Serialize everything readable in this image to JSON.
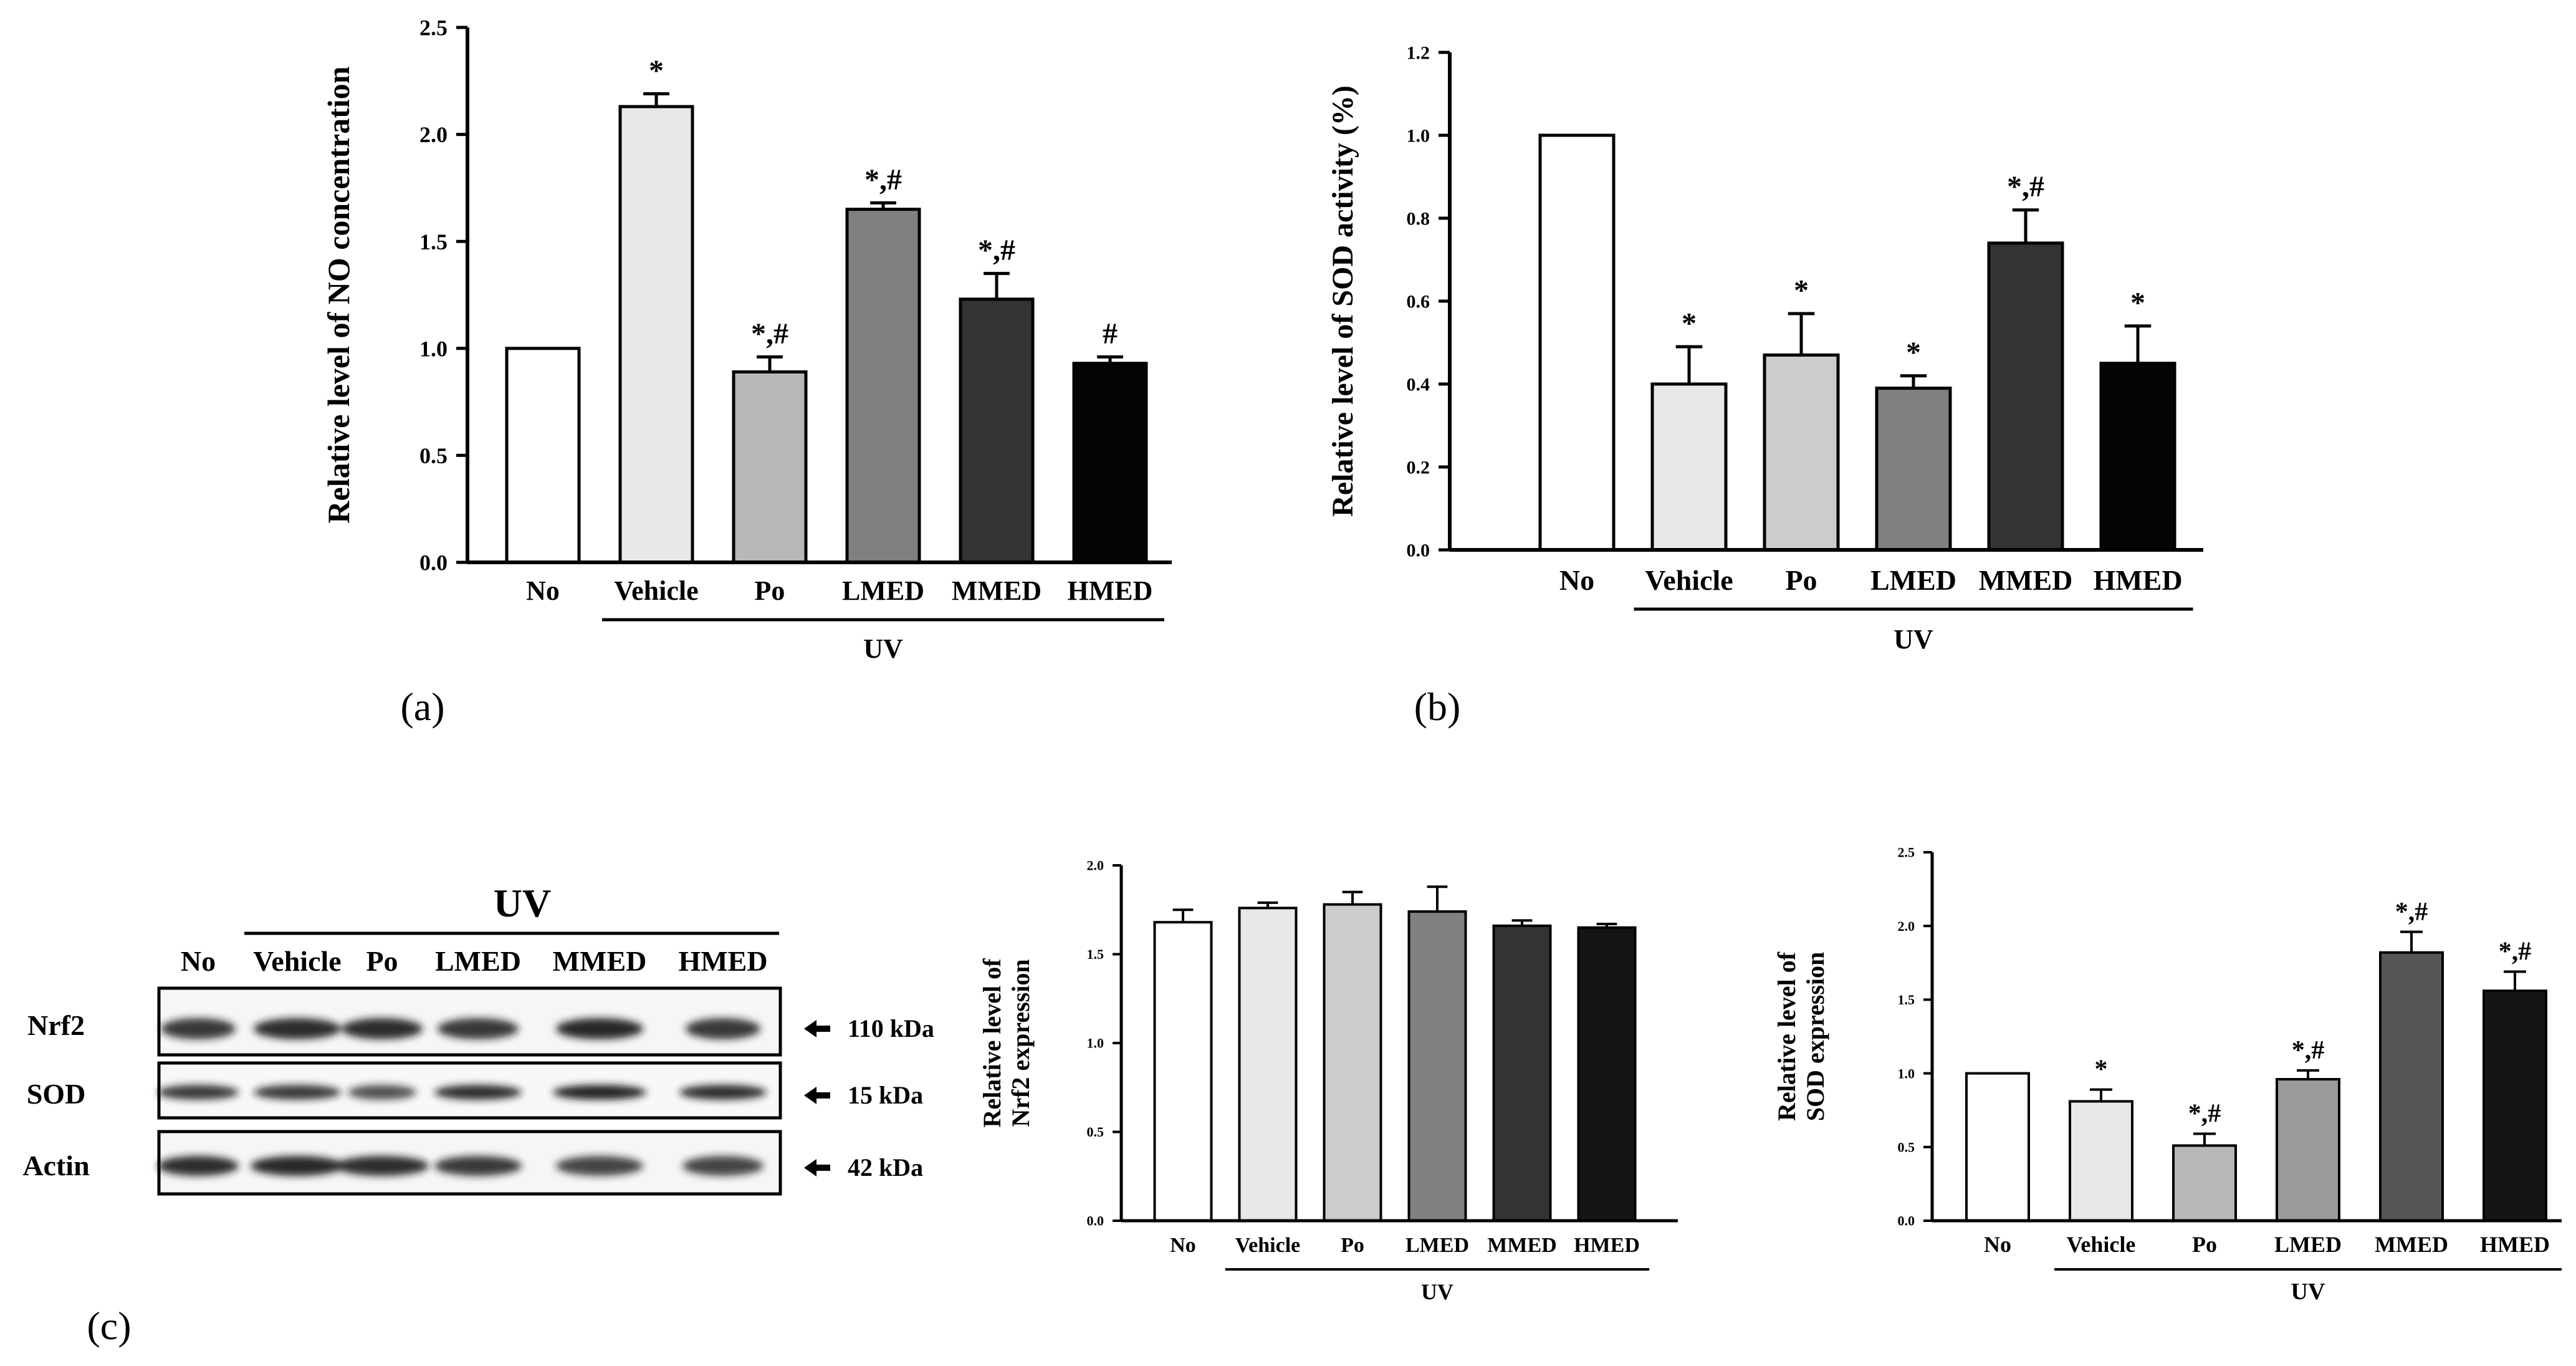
{
  "panel_labels": {
    "a": "(a)",
    "b": "(b)",
    "c": "(c)"
  },
  "chart_data": [
    {
      "id": "a",
      "type": "bar",
      "ylabel": "Relative level of NO concentration",
      "ylim": [
        0,
        2.5
      ],
      "yticks": [
        0.0,
        0.5,
        1.0,
        1.5,
        2.0,
        2.5
      ],
      "tick_decimals": 1,
      "categories": [
        "No",
        "Vehicle",
        "Po",
        "LMED",
        "MMED",
        "HMED"
      ],
      "values": [
        1.0,
        2.13,
        0.89,
        1.65,
        1.23,
        0.93
      ],
      "errors": [
        0.0,
        0.06,
        0.07,
        0.03,
        0.12,
        0.03
      ],
      "annotations": [
        "",
        "*",
        "*,#",
        "*,#",
        "*,#",
        "#"
      ],
      "colors": [
        "#ffffff",
        "#e8e8e8",
        "#b8b8b8",
        "#808080",
        "#333333",
        "#050505"
      ],
      "group_label": "UV",
      "group_start": 1,
      "group_end": 5
    },
    {
      "id": "b",
      "type": "bar",
      "ylabel": "Relative level of SOD activity (%)",
      "ylim": [
        0,
        1.2
      ],
      "yticks": [
        0.0,
        0.2,
        0.4,
        0.6,
        0.8,
        1.0,
        1.2
      ],
      "tick_decimals": 1,
      "categories": [
        "No",
        "Vehicle",
        "Po",
        "LMED",
        "MMED",
        "HMED"
      ],
      "values": [
        1.0,
        0.4,
        0.47,
        0.39,
        0.74,
        0.45
      ],
      "errors": [
        0.0,
        0.09,
        0.1,
        0.03,
        0.08,
        0.09
      ],
      "annotations": [
        "",
        "*",
        "*",
        "*",
        "*,#",
        "*"
      ],
      "colors": [
        "#ffffff",
        "#e8e8e8",
        "#cccccc",
        "#808080",
        "#333333",
        "#050505"
      ],
      "group_label": "UV",
      "group_start": 1,
      "group_end": 5
    },
    {
      "id": "c1",
      "type": "bar",
      "ylabel_lines": [
        "Relative level of",
        "Nrf2 expression"
      ],
      "ylim": [
        0,
        2.0
      ],
      "yticks": [
        0.0,
        0.5,
        1.0,
        1.5,
        2.0
      ],
      "tick_decimals": 1,
      "categories": [
        "No",
        "Vehicle",
        "Po",
        "LMED",
        "MMED",
        "HMED"
      ],
      "values": [
        1.68,
        1.76,
        1.78,
        1.74,
        1.66,
        1.65
      ],
      "errors": [
        0.07,
        0.03,
        0.07,
        0.14,
        0.03,
        0.02
      ],
      "annotations": [
        "",
        "",
        "",
        "",
        "",
        ""
      ],
      "colors": [
        "#ffffff",
        "#e8e8e8",
        "#cccccc",
        "#808080",
        "#333333",
        "#151515"
      ],
      "group_label": "UV",
      "group_start": 1,
      "group_end": 5
    },
    {
      "id": "c2",
      "type": "bar",
      "ylabel_lines": [
        "Relative level of",
        "SOD expression"
      ],
      "ylim": [
        0,
        2.5
      ],
      "yticks": [
        0.0,
        0.5,
        1.0,
        1.5,
        2.0,
        2.5
      ],
      "tick_decimals": 1,
      "categories": [
        "No",
        "Vehicle",
        "Po",
        "LMED",
        "MMED",
        "HMED"
      ],
      "values": [
        1.0,
        0.81,
        0.51,
        0.96,
        1.82,
        1.56
      ],
      "errors": [
        0.0,
        0.08,
        0.08,
        0.06,
        0.14,
        0.13
      ],
      "annotations": [
        "",
        "*",
        "*,#",
        "*,#",
        "*,#",
        "*,#"
      ],
      "colors": [
        "#ffffff",
        "#e8e8e8",
        "#b8b8b8",
        "#9a9a9a",
        "#555555",
        "#151515"
      ],
      "group_label": "UV",
      "group_start": 1,
      "group_end": 5
    }
  ],
  "western_blot": {
    "header": "UV",
    "lanes": [
      "No",
      "Vehicle",
      "Po",
      "LMED",
      "MMED",
      "HMED"
    ],
    "rows": [
      {
        "name": "Nrf2",
        "size": "110 kDa"
      },
      {
        "name": "SOD",
        "size": "15 kDa"
      },
      {
        "name": "Actin",
        "size": "42 kDa"
      }
    ]
  }
}
